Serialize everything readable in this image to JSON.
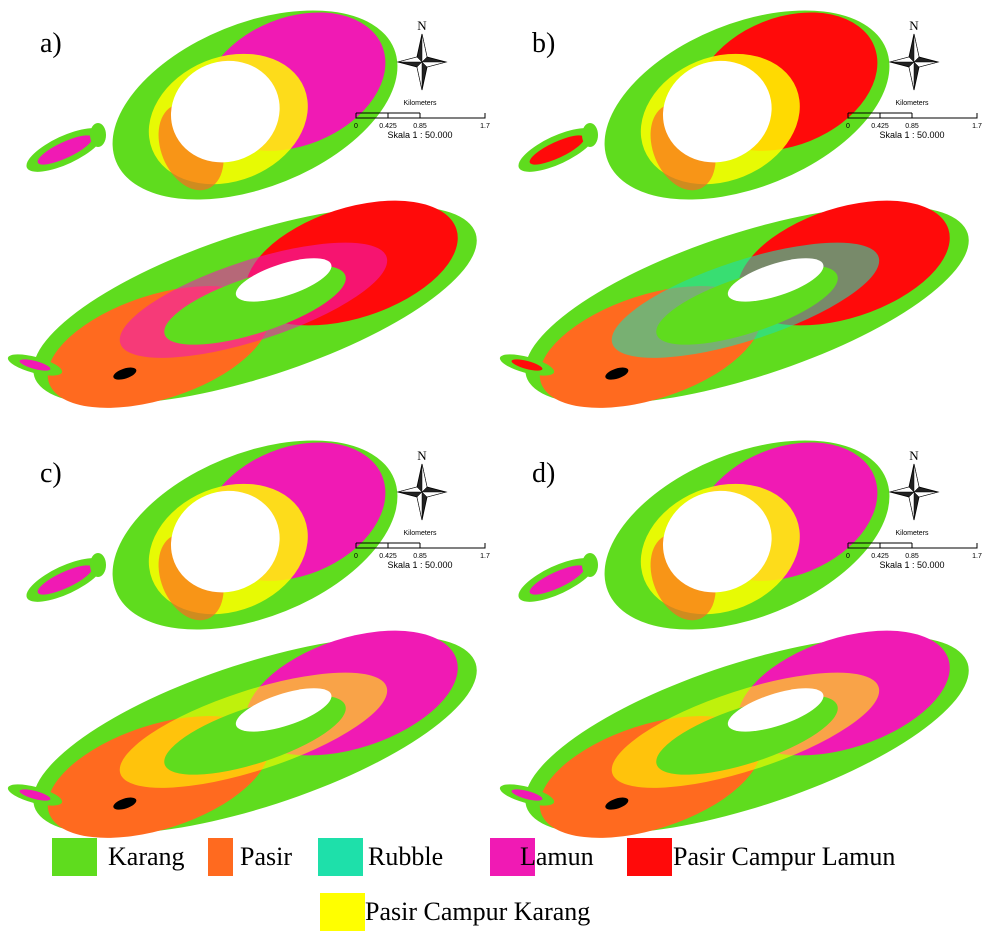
{
  "panels": [
    {
      "label": "a)",
      "compass": "N",
      "scale_title": "Kilometers",
      "scale_ticks": [
        "0",
        "0.425",
        "0.85",
        "1.7"
      ],
      "scale_text": "Skala 1 : 50.000"
    },
    {
      "label": "b)",
      "compass": "N",
      "scale_title": "Kilometers",
      "scale_ticks": [
        "0",
        "0.425",
        "0.85",
        "1.7"
      ],
      "scale_text": "Skala 1 : 50.000"
    },
    {
      "label": "c)",
      "compass": "N",
      "scale_title": "Kilometers",
      "scale_ticks": [
        "0",
        "0.425",
        "0.85",
        "1.7"
      ],
      "scale_text": "Skala 1 : 50.000"
    },
    {
      "label": "d)",
      "compass": "N",
      "scale_title": "Kilometers",
      "scale_ticks": [
        "0",
        "0.425",
        "0.85",
        "1.7"
      ],
      "scale_text": "Skala 1 : 50.000"
    }
  ],
  "legend": [
    {
      "label": "Karang",
      "color": "#5fdc1e"
    },
    {
      "label": "Pasir",
      "color": "#ff6a1f"
    },
    {
      "label": "Rubble",
      "color": "#1ee0aa"
    },
    {
      "label": "Lamun",
      "color": "#f01ab4"
    },
    {
      "label": "Pasir Campur Lamun",
      "color": "#ff0a0a"
    },
    {
      "label": "Pasir Campur Karang",
      "color": "#ffff00"
    }
  ]
}
